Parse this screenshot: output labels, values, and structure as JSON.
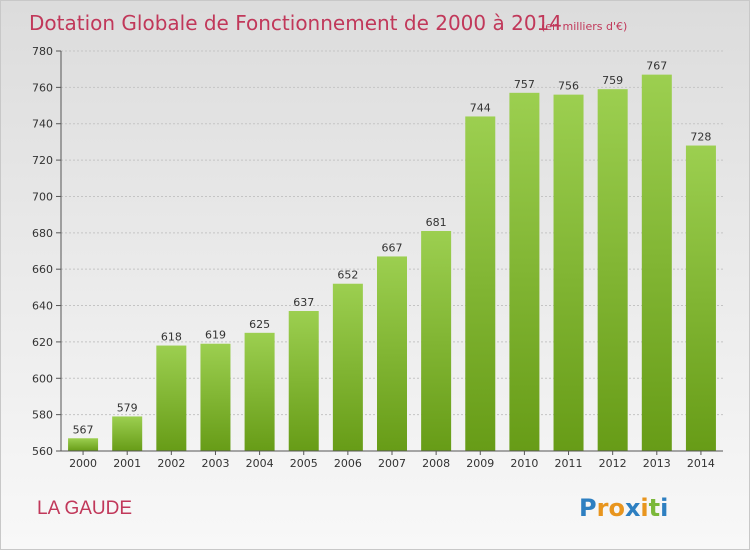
{
  "chart_data": {
    "type": "bar",
    "title": "Dotation Globale de Fonctionnement de 2000 à 2014",
    "subtitle": "(en milliers d'€)",
    "categories": [
      "2000",
      "2001",
      "2002",
      "2003",
      "2004",
      "2005",
      "2006",
      "2007",
      "2008",
      "2009",
      "2010",
      "2011",
      "2012",
      "2013",
      "2014"
    ],
    "values": [
      567,
      579,
      618,
      619,
      625,
      637,
      652,
      667,
      681,
      744,
      757,
      756,
      759,
      767,
      728
    ],
    "ylim": [
      560,
      780
    ],
    "yticks": [
      560,
      580,
      600,
      620,
      640,
      660,
      680,
      700,
      720,
      740,
      760,
      780
    ],
    "grid": true,
    "colors": {
      "bar_light": "#9ccf50",
      "bar_dark": "#6a9e1a",
      "accent": "#c1385a"
    }
  },
  "place_name": "LA GAUDE",
  "logo": {
    "letters": [
      "P",
      "r",
      "o",
      "x",
      "i",
      "t",
      "i"
    ],
    "colors": [
      "#2d7fc1",
      "#e8951e",
      "#e8951e",
      "#2d7fc1",
      "#e8951e",
      "#7bb83a",
      "#2d7fc1"
    ]
  }
}
